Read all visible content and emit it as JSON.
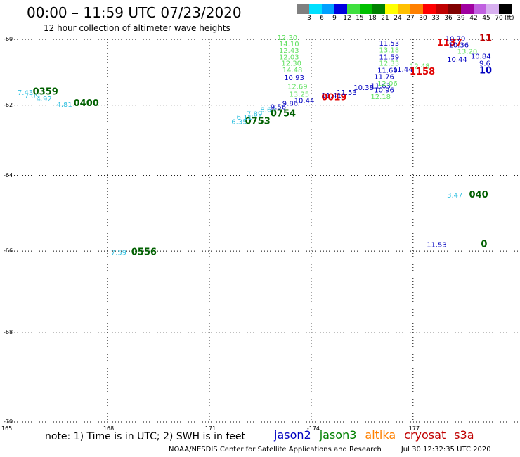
{
  "header": {
    "title": "00:00 – 11:59 UTC 07/23/2020",
    "subtitle": "12 hour collection of altimeter wave heights"
  },
  "colorbar": {
    "colors": [
      "#808080",
      "#00e0ff",
      "#00a0ff",
      "#0000e0",
      "#40e040",
      "#00c000",
      "#008000",
      "#ffff00",
      "#ffc000",
      "#ff8000",
      "#ff0000",
      "#c00000",
      "#800000",
      "#a000a0",
      "#c060e0",
      "#d8b0f0",
      "#000000"
    ],
    "labels": [
      "3",
      "6",
      "9",
      "12",
      "15",
      "18",
      "21",
      "24",
      "27",
      "30",
      "33",
      "36",
      "39",
      "42",
      "45",
      "70"
    ],
    "unit": "(ft)"
  },
  "axes": {
    "lon_labels": [
      "165",
      "168",
      "171",
      "-174",
      "177"
    ],
    "lat_labels": [
      "-60",
      "-62",
      "-64",
      "-66",
      "-68",
      "-70"
    ]
  },
  "satellites": [
    {
      "name": "jason2",
      "color": "#0000c0"
    },
    {
      "name": "jason3",
      "color": "#008000"
    },
    {
      "name": "altika",
      "color": "#ff8000"
    },
    {
      "name": "cryosat",
      "color": "#c00000"
    },
    {
      "name": "s3a",
      "color": "#c00000"
    }
  ],
  "observations": [
    {
      "text": "7.43",
      "color": "#30c0e0",
      "lon": 165.35,
      "lat": -61.7
    },
    {
      "text": "0359",
      "color": "#006000",
      "lon": 165.8,
      "lat": -61.68
    },
    {
      "text": "7.09",
      "color": "#30c0e0",
      "lon": 165.55,
      "lat": -61.8
    },
    {
      "text": "4.92",
      "color": "#30c0e0",
      "lon": 165.9,
      "lat": -61.88
    },
    {
      "text": "4.81",
      "color": "#30c0e0",
      "lon": 166.5,
      "lat": -62.05
    },
    {
      "text": "0400",
      "color": "#006000",
      "lon": 167.0,
      "lat": -62.03
    },
    {
      "text": "7.59",
      "color": "#30c0e0",
      "lon": 168.1,
      "lat": -66.1
    },
    {
      "text": "0556",
      "color": "#006000",
      "lon": 168.7,
      "lat": -66.1
    },
    {
      "text": "6.35",
      "color": "#30c0e0",
      "lon": 171.65,
      "lat": -62.55
    },
    {
      "text": "0753",
      "color": "#006000",
      "lon": 172.05,
      "lat": -62.55
    },
    {
      "text": "6.11",
      "color": "#30c0e0",
      "lon": 171.8,
      "lat": -62.42
    },
    {
      "text": "7.89",
      "color": "#30c0e0",
      "lon": 172.1,
      "lat": -62.33
    },
    {
      "text": "8.62",
      "color": "#30c0e0",
      "lon": 172.5,
      "lat": -62.2
    },
    {
      "text": "0754",
      "color": "#006000",
      "lon": 172.8,
      "lat": -62.33
    },
    {
      "text": "9.56",
      "color": "#0000c0",
      "lon": 172.8,
      "lat": -62.12
    },
    {
      "text": "9.86",
      "color": "#0000c0",
      "lon": 173.15,
      "lat": -62.02
    },
    {
      "text": "10.44",
      "color": "#0000c0",
      "lon": 173.5,
      "lat": -61.93
    },
    {
      "text": "11.41",
      "color": "#0000c0",
      "lon": 174.3,
      "lat": -61.78
    },
    {
      "text": "0019",
      "color": "#e00000",
      "lon": 174.3,
      "lat": -61.85
    },
    {
      "text": "11.53",
      "color": "#0000c0",
      "lon": 174.75,
      "lat": -61.7
    },
    {
      "text": "10.38",
      "color": "#0000c0",
      "lon": 175.25,
      "lat": -61.55
    },
    {
      "text": "11.63",
      "color": "#0000c0",
      "lon": 175.75,
      "lat": -61.5
    },
    {
      "text": "12.30",
      "color": "#60e060",
      "lon": 173.0,
      "lat": -60.02
    },
    {
      "text": "14.10",
      "color": "#60e060",
      "lon": 173.05,
      "lat": -60.22
    },
    {
      "text": "12.43",
      "color": "#60e060",
      "lon": 173.05,
      "lat": -60.42
    },
    {
      "text": "12.03",
      "color": "#60e060",
      "lon": 173.05,
      "lat": -60.62
    },
    {
      "text": "12.30",
      "color": "#60e060",
      "lon": 173.12,
      "lat": -60.82
    },
    {
      "text": "14.48",
      "color": "#60e060",
      "lon": 173.15,
      "lat": -61.02
    },
    {
      "text": "10.93",
      "color": "#0000c0",
      "lon": 173.2,
      "lat": -61.25
    },
    {
      "text": "12.69",
      "color": "#60e060",
      "lon": 173.3,
      "lat": -61.52
    },
    {
      "text": "13.25",
      "color": "#60e060",
      "lon": 173.35,
      "lat": -61.75
    },
    {
      "text": "11.53",
      "color": "#0000c0",
      "lon": 176.0,
      "lat": -60.2
    },
    {
      "text": "13.18",
      "color": "#60e060",
      "lon": 176.0,
      "lat": -60.4
    },
    {
      "text": "11.59",
      "color": "#0000c0",
      "lon": 176.0,
      "lat": -60.62
    },
    {
      "text": "12.33",
      "color": "#60e060",
      "lon": 176.0,
      "lat": -60.82
    },
    {
      "text": "11.60",
      "color": "#0000c0",
      "lon": 175.95,
      "lat": -61.03
    },
    {
      "text": "11.76",
      "color": "#0000c0",
      "lon": 175.85,
      "lat": -61.22
    },
    {
      "text": "12.06",
      "color": "#60e060",
      "lon": 175.95,
      "lat": -61.42
    },
    {
      "text": "10.96",
      "color": "#0000c0",
      "lon": 175.85,
      "lat": -61.62
    },
    {
      "text": "12.18",
      "color": "#60e060",
      "lon": 175.75,
      "lat": -61.82
    },
    {
      "text": "11.44",
      "color": "#0000c0",
      "lon": 176.4,
      "lat": -61.0
    },
    {
      "text": "12.48",
      "color": "#60e060",
      "lon": 176.9,
      "lat": -60.9
    },
    {
      "text": "1158",
      "color": "#e00000",
      "lon": 176.9,
      "lat": -61.08
    },
    {
      "text": "1137",
      "color": "#e00000",
      "lon": 177.7,
      "lat": -60.2
    },
    {
      "text": "10.79",
      "color": "#0000c0",
      "lon": 177.95,
      "lat": -60.05
    },
    {
      "text": "10.36",
      "color": "#0000c0",
      "lon": 178.05,
      "lat": -60.25
    },
    {
      "text": "11",
      "color": "#c00000",
      "lon": 178.95,
      "lat": -60.05
    },
    {
      "text": "13.20",
      "color": "#60e060",
      "lon": 178.3,
      "lat": -60.45
    },
    {
      "text": "10.84",
      "color": "#0000c0",
      "lon": 178.7,
      "lat": -60.6
    },
    {
      "text": "10.44",
      "color": "#0000c0",
      "lon": 178.0,
      "lat": -60.7
    },
    {
      "text": "9.6",
      "color": "#0000c0",
      "lon": 178.95,
      "lat": -60.82
    },
    {
      "text": "10",
      "color": "#0000c0",
      "lon": 178.95,
      "lat": -61.05
    },
    {
      "text": "3.47",
      "color": "#30c0e0",
      "lon": 178.0,
      "lat": -64.6
    },
    {
      "text": "040",
      "color": "#006000",
      "lon": 178.65,
      "lat": -64.6
    },
    {
      "text": "11.53",
      "color": "#0000c0",
      "lon": 177.4,
      "lat": -65.9
    },
    {
      "text": "0",
      "color": "#006000",
      "lon": 179.0,
      "lat": -65.9
    }
  ],
  "note": "note:  1) Time is in UTC;  2) SWH is in feet",
  "credit": {
    "org": "NOAA/NESDIS Center for Satellite Applications and Research",
    "timestamp": "Jul 30 12:32:35 UTC 2020"
  }
}
